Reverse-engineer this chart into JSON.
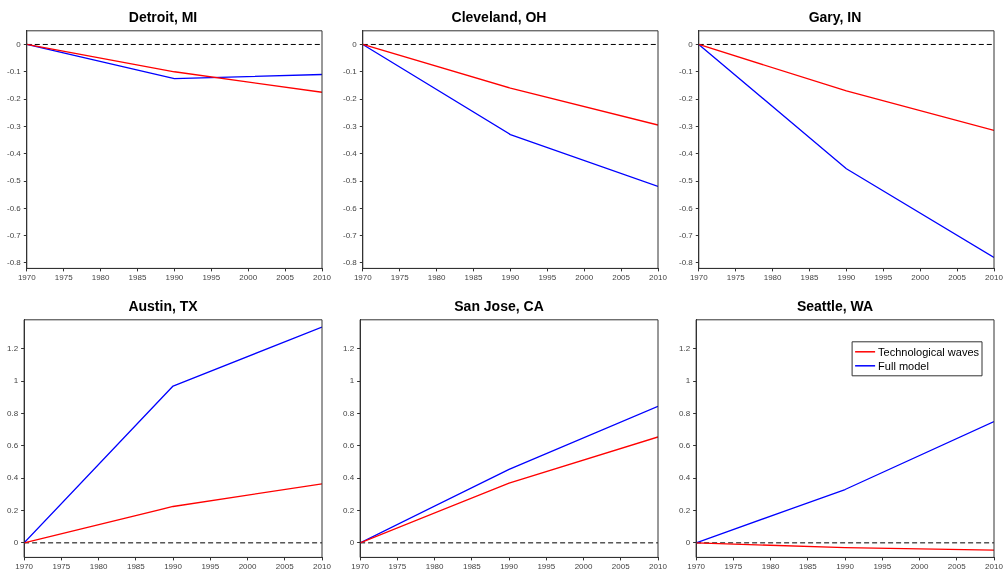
{
  "chart_data": [
    {
      "type": "line",
      "title": "Detroit, MI",
      "x": [
        1970,
        1990,
        2010
      ],
      "series": [
        {
          "color": "#ff0000",
          "values": [
            0,
            -0.1,
            -0.175
          ]
        },
        {
          "color": "#0000ff",
          "values": [
            0,
            -0.125,
            -0.11
          ]
        }
      ],
      "xlim": [
        1970,
        2010
      ],
      "xticks": [
        1970,
        1975,
        1980,
        1985,
        1990,
        1995,
        2000,
        2005,
        2010
      ],
      "ylim": [
        -0.82,
        0.05
      ],
      "yticks": [
        -0.8,
        -0.7,
        -0.6,
        -0.5,
        -0.4,
        -0.3,
        -0.2,
        -0.1,
        0
      ],
      "ref_lines": [
        {
          "axis": "y",
          "value": 0,
          "color": "#000000",
          "line_style": "dashed"
        }
      ],
      "grid": false,
      "legend": false,
      "line_style": "solid",
      "marker": "none"
    },
    {
      "type": "line",
      "title": "Cleveland, OH",
      "x": [
        1970,
        1990,
        2010
      ],
      "series": [
        {
          "color": "#ff0000",
          "values": [
            0,
            -0.16,
            -0.295
          ]
        },
        {
          "color": "#0000ff",
          "values": [
            0,
            -0.33,
            -0.52
          ]
        }
      ],
      "xlim": [
        1970,
        2010
      ],
      "xticks": [
        1970,
        1975,
        1980,
        1985,
        1990,
        1995,
        2000,
        2005,
        2010
      ],
      "ylim": [
        -0.82,
        0.05
      ],
      "yticks": [
        -0.8,
        -0.7,
        -0.6,
        -0.5,
        -0.4,
        -0.3,
        -0.2,
        -0.1,
        0
      ],
      "ref_lines": [
        {
          "axis": "y",
          "value": 0,
          "color": "#000000",
          "line_style": "dashed"
        }
      ],
      "grid": false,
      "legend": false,
      "line_style": "solid",
      "marker": "none"
    },
    {
      "type": "line",
      "title": "Gary, IN",
      "x": [
        1970,
        1990,
        2010
      ],
      "series": [
        {
          "color": "#ff0000",
          "values": [
            0,
            -0.17,
            -0.315
          ]
        },
        {
          "color": "#0000ff",
          "values": [
            0,
            -0.455,
            -0.78
          ]
        }
      ],
      "xlim": [
        1970,
        2010
      ],
      "xticks": [
        1970,
        1975,
        1980,
        1985,
        1990,
        1995,
        2000,
        2005,
        2010
      ],
      "ylim": [
        -0.82,
        0.05
      ],
      "yticks": [
        -0.8,
        -0.7,
        -0.6,
        -0.5,
        -0.4,
        -0.3,
        -0.2,
        -0.1,
        0
      ],
      "ref_lines": [
        {
          "axis": "y",
          "value": 0,
          "color": "#000000",
          "line_style": "dashed"
        }
      ],
      "grid": false,
      "legend": false,
      "line_style": "solid",
      "marker": "none"
    },
    {
      "type": "line",
      "title": "Austin, TX",
      "x": [
        1970,
        1990,
        2010
      ],
      "series": [
        {
          "color": "#ff0000",
          "values": [
            0,
            0.225,
            0.365
          ]
        },
        {
          "color": "#0000ff",
          "values": [
            0,
            0.97,
            1.335
          ]
        }
      ],
      "xlim": [
        1970,
        2010
      ],
      "xticks": [
        1970,
        1975,
        1980,
        1985,
        1990,
        1995,
        2000,
        2005,
        2010
      ],
      "ylim": [
        -0.09,
        1.38
      ],
      "yticks": [
        0,
        0.2,
        0.4,
        0.6,
        0.8,
        1,
        1.2
      ],
      "ref_lines": [
        {
          "axis": "y",
          "value": 0,
          "color": "#000000",
          "line_style": "dashed"
        }
      ],
      "grid": false,
      "legend": false,
      "line_style": "solid",
      "marker": "none"
    },
    {
      "type": "line",
      "title": "San Jose, CA",
      "x": [
        1970,
        1990,
        2010
      ],
      "series": [
        {
          "color": "#ff0000",
          "values": [
            0,
            0.37,
            0.655
          ]
        },
        {
          "color": "#0000ff",
          "values": [
            0,
            0.455,
            0.845
          ]
        }
      ],
      "xlim": [
        1970,
        2010
      ],
      "xticks": [
        1970,
        1975,
        1980,
        1985,
        1990,
        1995,
        2000,
        2005,
        2010
      ],
      "ylim": [
        -0.09,
        1.38
      ],
      "yticks": [
        0,
        0.2,
        0.4,
        0.6,
        0.8,
        1,
        1.2
      ],
      "ref_lines": [
        {
          "axis": "y",
          "value": 0,
          "color": "#000000",
          "line_style": "dashed"
        }
      ],
      "grid": false,
      "legend": false,
      "line_style": "solid",
      "marker": "none"
    },
    {
      "type": "line",
      "title": "Seattle, WA",
      "x": [
        1970,
        1990,
        2010
      ],
      "series": [
        {
          "name": "Technological waves",
          "color": "#ff0000",
          "values": [
            0,
            -0.03,
            -0.045
          ]
        },
        {
          "name": "Full model",
          "color": "#0000ff",
          "values": [
            0,
            0.33,
            0.75
          ]
        }
      ],
      "xlim": [
        1970,
        2010
      ],
      "xticks": [
        1970,
        1975,
        1980,
        1985,
        1990,
        1995,
        2000,
        2005,
        2010
      ],
      "ylim": [
        -0.09,
        1.38
      ],
      "yticks": [
        0,
        0.2,
        0.4,
        0.6,
        0.8,
        1,
        1.2
      ],
      "ref_lines": [
        {
          "axis": "y",
          "value": 0,
          "color": "#000000",
          "line_style": "dashed"
        }
      ],
      "grid": false,
      "legend": "top right",
      "line_style": "solid",
      "marker": "none"
    }
  ]
}
